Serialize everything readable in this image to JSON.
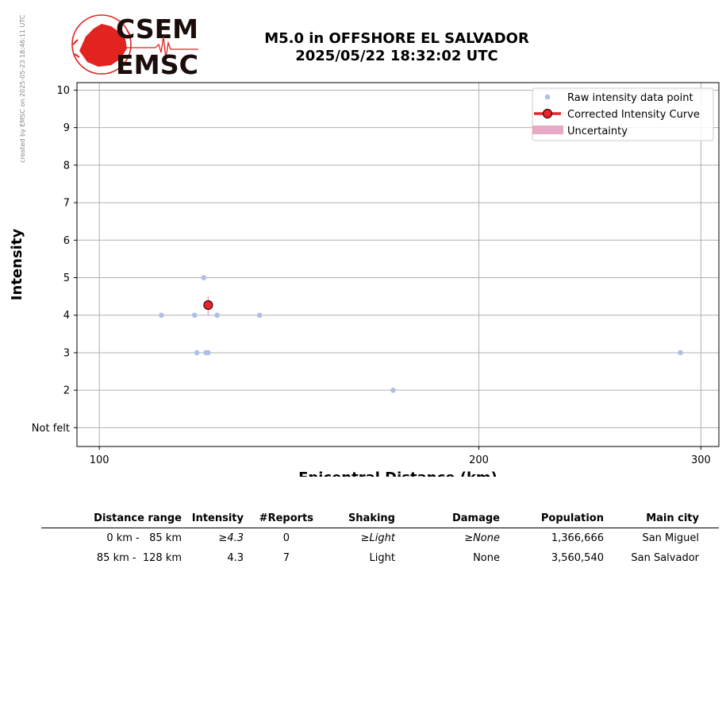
{
  "watermark": "created by EMSC on 2025-05-23 18:46:11 UTC",
  "logo": {
    "top": "CSEM",
    "bottom": "EMSC"
  },
  "title": {
    "line1": "M5.0 in OFFSHORE EL SALVADOR",
    "line2": "2025/05/22 18:32:02 UTC"
  },
  "colors": {
    "raw": "#aebfe8",
    "curve": "#e8242a",
    "uncertainty": "#e8a9c4",
    "grid": "#b0b0b0",
    "logo_red": "#e3231f"
  },
  "chart_data": {
    "type": "scatter",
    "xlabel": "Epicentral Distance (km)",
    "ylabel": "Intensity",
    "xscale": "log",
    "xlim": [
      96,
      310
    ],
    "ylim": [
      0.5,
      10.2
    ],
    "x_ticks": [
      100,
      200,
      300
    ],
    "y_ticks": [
      1,
      2,
      3,
      4,
      5,
      6,
      7,
      8,
      9,
      10
    ],
    "y_tick_labels": [
      "Not felt",
      "2",
      "3",
      "4",
      "5",
      "6",
      "7",
      "8",
      "9",
      "10"
    ],
    "grid": true,
    "legend_position": "top-right",
    "legend": [
      "Raw intensity data point",
      "Corrected Intensity Curve",
      "Uncertainty"
    ],
    "series": [
      {
        "name": "Raw intensity data point",
        "x": [
          112,
          119,
          121,
          122,
          124,
          134,
          171,
          289,
          119.5,
          121.5
        ],
        "y": [
          4,
          4,
          5,
          3,
          4,
          4,
          2,
          3,
          3,
          3
        ]
      },
      {
        "name": "Corrected Intensity Curve",
        "x": [
          122
        ],
        "y": [
          4.27
        ],
        "uncertainty": [
          4.0,
          4.5
        ]
      }
    ]
  },
  "table": {
    "headers": [
      "Distance range",
      "Intensity",
      "#Reports",
      "Shaking",
      "Damage",
      "Population",
      "Main city"
    ],
    "rows": [
      [
        "0 km -   85 km",
        "≥4.3",
        "0",
        "≥Light",
        "≥None",
        "1,366,666",
        "San Miguel"
      ],
      [
        "85 km -  128 km",
        "4.3",
        "7",
        "Light",
        "None",
        "3,560,540",
        "San Salvador"
      ]
    ]
  }
}
